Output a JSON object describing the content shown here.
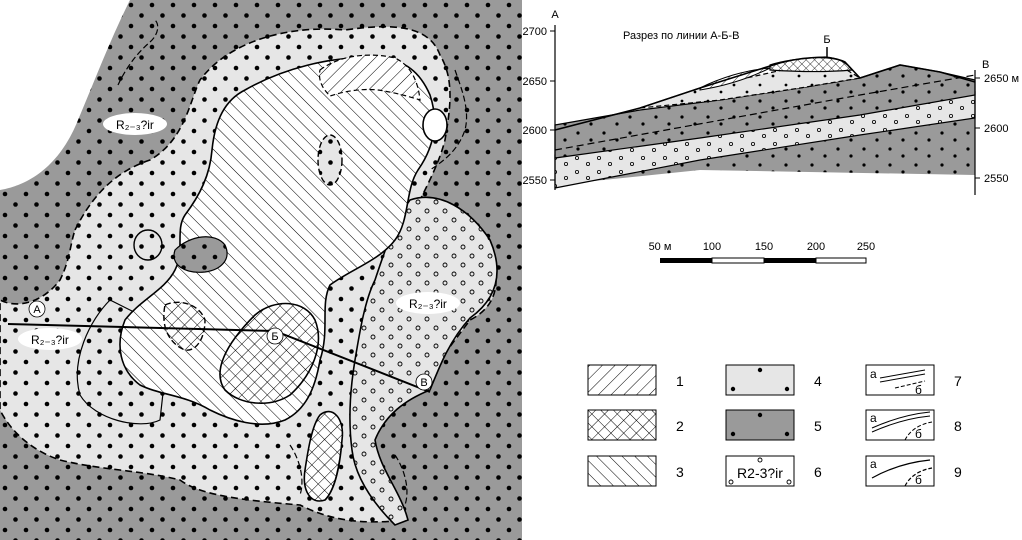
{
  "map": {
    "labels": [
      {
        "id": "label-left-upper",
        "text": "R₂₋₃?ir"
      },
      {
        "id": "label-left-lower",
        "text": "R₂₋₃?ir"
      },
      {
        "id": "label-right",
        "text": "R₂₋₃?ir"
      }
    ],
    "points": {
      "a": "А",
      "b": "Б",
      "v": "В"
    }
  },
  "section": {
    "title": "Разрез по линии А-Б-В",
    "left_letter": "А",
    "right_letter": "В",
    "top_letter": "Б",
    "left_ticks": [
      "2700",
      "2650",
      "2600",
      "2550"
    ],
    "right_ticks": [
      "2650 м",
      "2600",
      "2550"
    ]
  },
  "scale": {
    "labels": [
      "50 м",
      "100",
      "150",
      "200",
      "250"
    ]
  },
  "legend": {
    "items": [
      {
        "num": "1",
        "icon": "hatch-light-icon"
      },
      {
        "num": "2",
        "icon": "crosshatch-icon"
      },
      {
        "num": "3",
        "icon": "hatch-icon"
      },
      {
        "num": "4",
        "icon": "dotted-light-icon"
      },
      {
        "num": "5",
        "icon": "dotted-gray-icon"
      },
      {
        "num": "6",
        "icon": "circles-symbol-icon",
        "symbol": "R2-3?ir"
      },
      {
        "num": "7",
        "icon": "fault-zone-icon",
        "a": "а",
        "b": "б"
      },
      {
        "num": "8",
        "icon": "double-line-icon",
        "a": "а",
        "b": "б"
      },
      {
        "num": "9",
        "icon": "boundary-line-icon",
        "a": "а",
        "b": "б"
      }
    ]
  },
  "colors": {
    "gray": "#9a9a9a",
    "light": "#e6e6e6",
    "ink": "#000000"
  }
}
